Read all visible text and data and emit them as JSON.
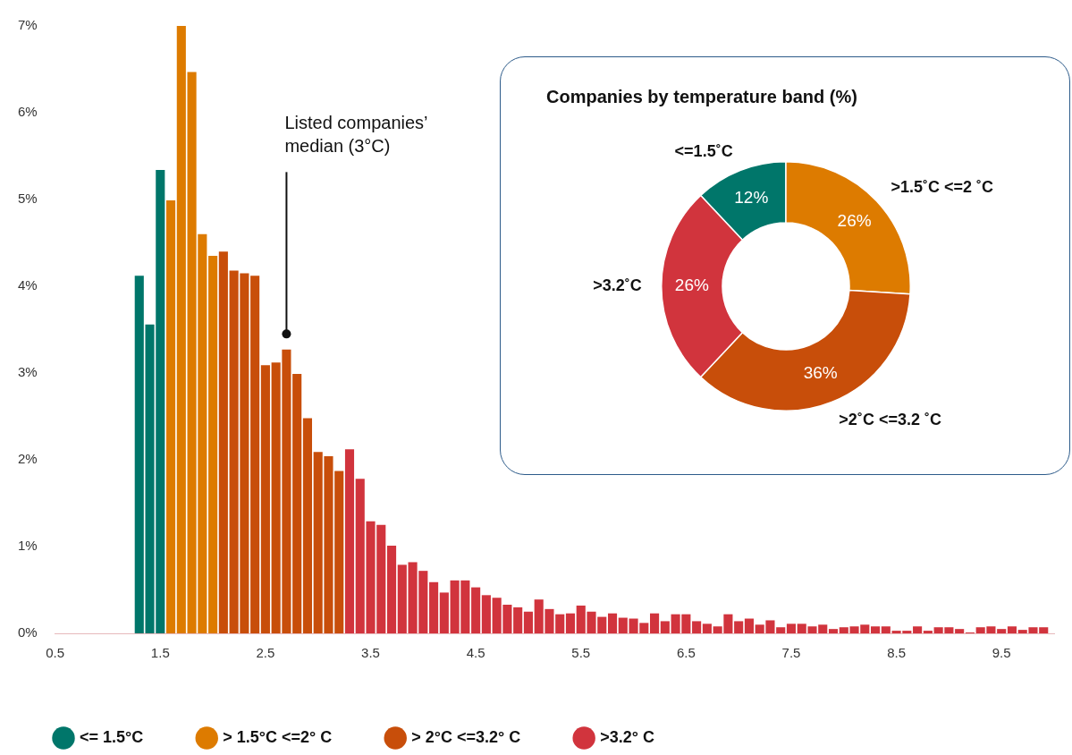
{
  "chart_data": [
    {
      "type": "histogram",
      "bins": [
        1.25,
        1.35,
        1.45,
        1.55,
        1.65,
        1.75,
        1.85,
        1.95,
        2.05,
        2.15,
        2.25,
        2.35,
        2.45,
        2.55,
        2.65,
        2.75,
        2.85,
        2.95,
        3.05,
        3.15,
        3.25,
        3.35,
        3.45,
        3.55,
        3.65,
        3.75,
        3.85,
        3.95,
        4.05,
        4.15,
        4.25,
        4.35,
        4.45,
        4.55,
        4.65,
        4.75,
        4.85,
        4.95,
        5.05,
        5.15,
        5.25,
        5.35,
        5.45,
        5.55,
        5.65,
        5.75,
        5.85,
        5.95,
        6.05,
        6.15,
        6.25,
        6.35,
        6.45,
        6.55,
        6.65,
        6.75,
        6.85,
        6.95,
        7.05,
        7.15,
        7.25,
        7.35,
        7.45,
        7.55,
        7.65,
        7.75,
        7.85,
        7.95,
        8.05,
        8.15,
        8.25,
        8.35,
        8.45,
        8.55,
        8.65,
        8.75,
        8.85,
        8.95,
        9.05,
        9.15,
        9.25,
        9.35,
        9.45,
        9.55,
        9.65,
        9.75,
        9.85,
        9.95
      ],
      "series": [
        {
          "name": "<= 1.5°C",
          "color": "#00766a",
          "values": [
            4.12,
            3.56,
            5.34,
            null,
            null,
            null,
            null,
            null,
            null,
            null,
            null,
            null,
            null,
            null,
            null,
            null,
            null,
            null,
            null,
            null,
            null,
            null,
            null,
            null,
            null,
            null,
            null,
            null,
            null,
            null,
            null,
            null,
            null,
            null,
            null,
            null,
            null,
            null,
            null,
            null,
            null,
            null,
            null,
            null,
            null,
            null,
            null,
            null,
            null,
            null,
            null,
            null,
            null,
            null,
            null,
            null,
            null,
            null,
            null,
            null,
            null,
            null,
            null,
            null,
            null,
            null,
            null,
            null,
            null,
            null,
            null,
            null,
            null,
            null,
            null,
            null,
            null,
            null,
            null,
            null,
            null,
            null,
            null,
            null,
            null,
            null,
            null
          ]
        },
        {
          "name": "> 1.5°C <=2° C",
          "color": "#dd7b00",
          "values": [
            null,
            null,
            null,
            4.99,
            7.0,
            6.47,
            4.6,
            4.35,
            null,
            null,
            null,
            null,
            null,
            null,
            null,
            null,
            null,
            null,
            null,
            null,
            null,
            null,
            null,
            null,
            null,
            null,
            null,
            null,
            null,
            null,
            null,
            null,
            null,
            null,
            null,
            null,
            null,
            null,
            null,
            null,
            null,
            null,
            null,
            null,
            null,
            null,
            null,
            null,
            null,
            null,
            null,
            null,
            null,
            null,
            null,
            null,
            null,
            null,
            null,
            null,
            null,
            null,
            null,
            null,
            null,
            null,
            null,
            null,
            null,
            null,
            null,
            null,
            null,
            null,
            null,
            null,
            null,
            null,
            null,
            null,
            null,
            null,
            null,
            null,
            null,
            null,
            null
          ]
        },
        {
          "name": "> 2°C <=3.2° C",
          "color": "#c84e0a",
          "values": [
            null,
            null,
            null,
            null,
            null,
            null,
            null,
            null,
            4.4,
            4.18,
            4.15,
            4.12,
            3.09,
            3.12,
            3.27,
            2.99,
            2.48,
            2.09,
            2.04,
            1.87,
            null,
            null,
            null,
            null,
            null,
            null,
            null,
            null,
            null,
            null,
            null,
            null,
            null,
            null,
            null,
            null,
            null,
            null,
            null,
            null,
            null,
            null,
            null,
            null,
            null,
            null,
            null,
            null,
            null,
            null,
            null,
            null,
            null,
            null,
            null,
            null,
            null,
            null,
            null,
            null,
            null,
            null,
            null,
            null,
            null,
            null,
            null,
            null,
            null,
            null,
            null,
            null,
            null,
            null,
            null,
            null,
            null,
            null,
            null,
            null,
            null,
            null,
            null,
            null,
            null,
            null,
            null
          ]
        },
        {
          "name": ">3.2° C",
          "color": "#d1343d",
          "values": [
            null,
            null,
            null,
            null,
            null,
            null,
            null,
            null,
            null,
            null,
            null,
            null,
            null,
            null,
            null,
            null,
            null,
            null,
            null,
            null,
            2.12,
            1.78,
            1.29,
            1.25,
            1.01,
            0.79,
            0.82,
            0.72,
            0.59,
            0.47,
            0.61,
            0.61,
            0.53,
            0.44,
            0.41,
            0.33,
            0.3,
            0.25,
            0.39,
            0.28,
            0.22,
            0.23,
            0.32,
            0.25,
            0.19,
            0.23,
            0.18,
            0.17,
            0.12,
            0.23,
            0.14,
            0.22,
            0.22,
            0.14,
            0.11,
            0.08,
            0.22,
            0.14,
            0.17,
            0.1,
            0.15,
            0.07,
            0.11,
            0.11,
            0.08,
            0.1,
            0.05,
            0.07,
            0.08,
            0.1,
            0.08,
            0.08,
            0.03,
            0.03,
            0.08,
            0.03,
            0.07,
            0.07,
            0.05,
            0.01,
            0.07,
            0.08,
            0.05,
            0.08,
            0.04,
            0.07,
            0.07
          ]
        }
      ],
      "xlim": [
        0.5,
        10
      ],
      "xticks": [
        0.5,
        1.5,
        2.5,
        3.5,
        4.5,
        5.5,
        6.5,
        7.5,
        8.5,
        9.5
      ],
      "ylim": [
        0,
        7
      ],
      "yticks": [
        {
          "value": 0,
          "label": "0%"
        },
        {
          "value": 1,
          "label": "1%"
        },
        {
          "value": 2,
          "label": "2%"
        },
        {
          "value": 3,
          "label": "3%"
        },
        {
          "value": 4,
          "label": "4%"
        },
        {
          "value": 5,
          "label": "5%"
        },
        {
          "value": 6,
          "label": "6%"
        },
        {
          "value": 7,
          "label": "7%"
        }
      ],
      "legend": "bottom",
      "annotations": [
        {
          "text": "Listed companies’ median (3°C)",
          "x": 2.7,
          "y": 3.45
        }
      ]
    },
    {
      "type": "donut",
      "title": "Companies by temperature band (%)",
      "categories": [
        "<=1.5˚C",
        ">1.5˚C <=2 ˚C",
        ">2˚C <=3.2 ˚C",
        ">3.2˚C"
      ],
      "values": [
        12,
        26,
        36,
        26
      ],
      "colors": [
        "#00766a",
        "#dd7b00",
        "#c84e0a",
        "#d1343d"
      ],
      "value_labels": [
        "12%",
        "26%",
        "36%",
        "26%"
      ]
    }
  ]
}
